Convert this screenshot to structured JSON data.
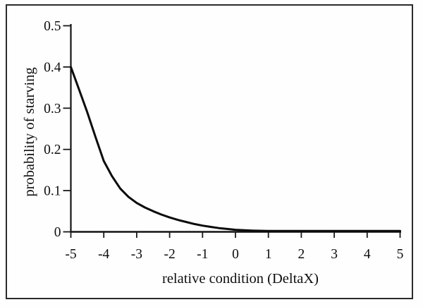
{
  "figure": {
    "background_color": "#fefefe",
    "border_color": "#2b2b2b",
    "text_color": "#0e0e0e",
    "curve_color": "#0b0b0b"
  },
  "chart_data": {
    "type": "line",
    "title": "",
    "xlabel": "relative condition (DeltaX)",
    "ylabel": "probability of starving",
    "xlim": [
      -5,
      5
    ],
    "ylim": [
      0,
      0.5
    ],
    "grid": false,
    "legend": "none",
    "x_ticks": [
      -5,
      -4,
      -3,
      -2,
      -1,
      0,
      1,
      2,
      3,
      4,
      5
    ],
    "x_tick_labels": [
      "-5",
      "-4",
      "-3",
      "-2",
      "-1",
      "0",
      "1",
      "2",
      "3",
      "4",
      "5"
    ],
    "y_ticks": [
      0,
      0.1,
      0.2,
      0.3,
      0.4,
      0.5
    ],
    "y_tick_labels": [
      "0",
      "0.1",
      "0.2",
      "0.3",
      "0.4",
      "0.5"
    ],
    "series": [
      {
        "name": "probability of starving",
        "x": [
          -5,
          -4.75,
          -4.5,
          -4.25,
          -4,
          -3.75,
          -3.5,
          -3.25,
          -3,
          -2.75,
          -2.5,
          -2.25,
          -2,
          -1.75,
          -1.5,
          -1.25,
          -1,
          -0.75,
          -0.5,
          -0.25,
          0,
          0.5,
          1,
          1.5,
          2,
          2.5,
          3,
          3.5,
          4,
          4.5,
          5
        ],
        "y": [
          0.4,
          0.345,
          0.29,
          0.23,
          0.172,
          0.135,
          0.105,
          0.085,
          0.07,
          0.059,
          0.05,
          0.042,
          0.035,
          0.029,
          0.024,
          0.019,
          0.015,
          0.012,
          0.009,
          0.007,
          0.005,
          0.003,
          0.002,
          0.002,
          0.002,
          0.002,
          0.002,
          0.002,
          0.002,
          0.002,
          0.002
        ]
      }
    ]
  }
}
